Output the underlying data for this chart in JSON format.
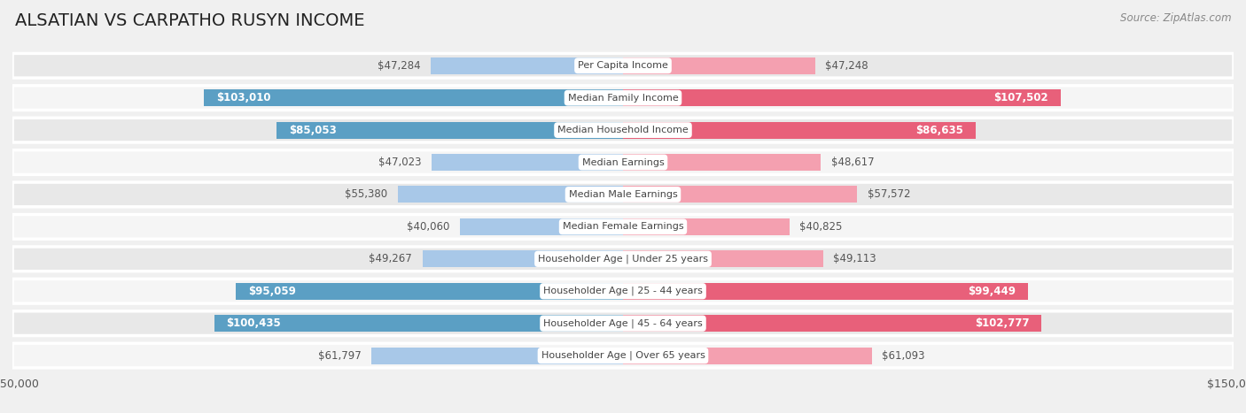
{
  "title": "ALSATIAN VS CARPATHO RUSYN INCOME",
  "source": "Source: ZipAtlas.com",
  "categories": [
    "Per Capita Income",
    "Median Family Income",
    "Median Household Income",
    "Median Earnings",
    "Median Male Earnings",
    "Median Female Earnings",
    "Householder Age | Under 25 years",
    "Householder Age | 25 - 44 years",
    "Householder Age | 45 - 64 years",
    "Householder Age | Over 65 years"
  ],
  "alsatian_values": [
    47284,
    103010,
    85053,
    47023,
    55380,
    40060,
    49267,
    95059,
    100435,
    61797
  ],
  "carpatho_values": [
    47248,
    107502,
    86635,
    48617,
    57572,
    40825,
    49113,
    99449,
    102777,
    61093
  ],
  "alsatian_labels": [
    "$47,284",
    "$103,010",
    "$85,053",
    "$47,023",
    "$55,380",
    "$40,060",
    "$49,267",
    "$95,059",
    "$100,435",
    "$61,797"
  ],
  "carpatho_labels": [
    "$47,248",
    "$107,502",
    "$86,635",
    "$48,617",
    "$57,572",
    "$40,825",
    "$49,113",
    "$99,449",
    "$102,777",
    "$61,093"
  ],
  "alsatian_color_light": "#a8c8e8",
  "alsatian_color_dark": "#5b9fc4",
  "carpatho_color_light": "#f4a0b0",
  "carpatho_color_dark": "#e8607a",
  "max_value": 150000,
  "background_color": "#f0f0f0",
  "row_bg_even": "#e8e8e8",
  "row_bg_odd": "#f5f5f5",
  "label_fontsize": 8.5,
  "title_fontsize": 14,
  "category_fontsize": 8.0,
  "threshold_inside": 65000
}
